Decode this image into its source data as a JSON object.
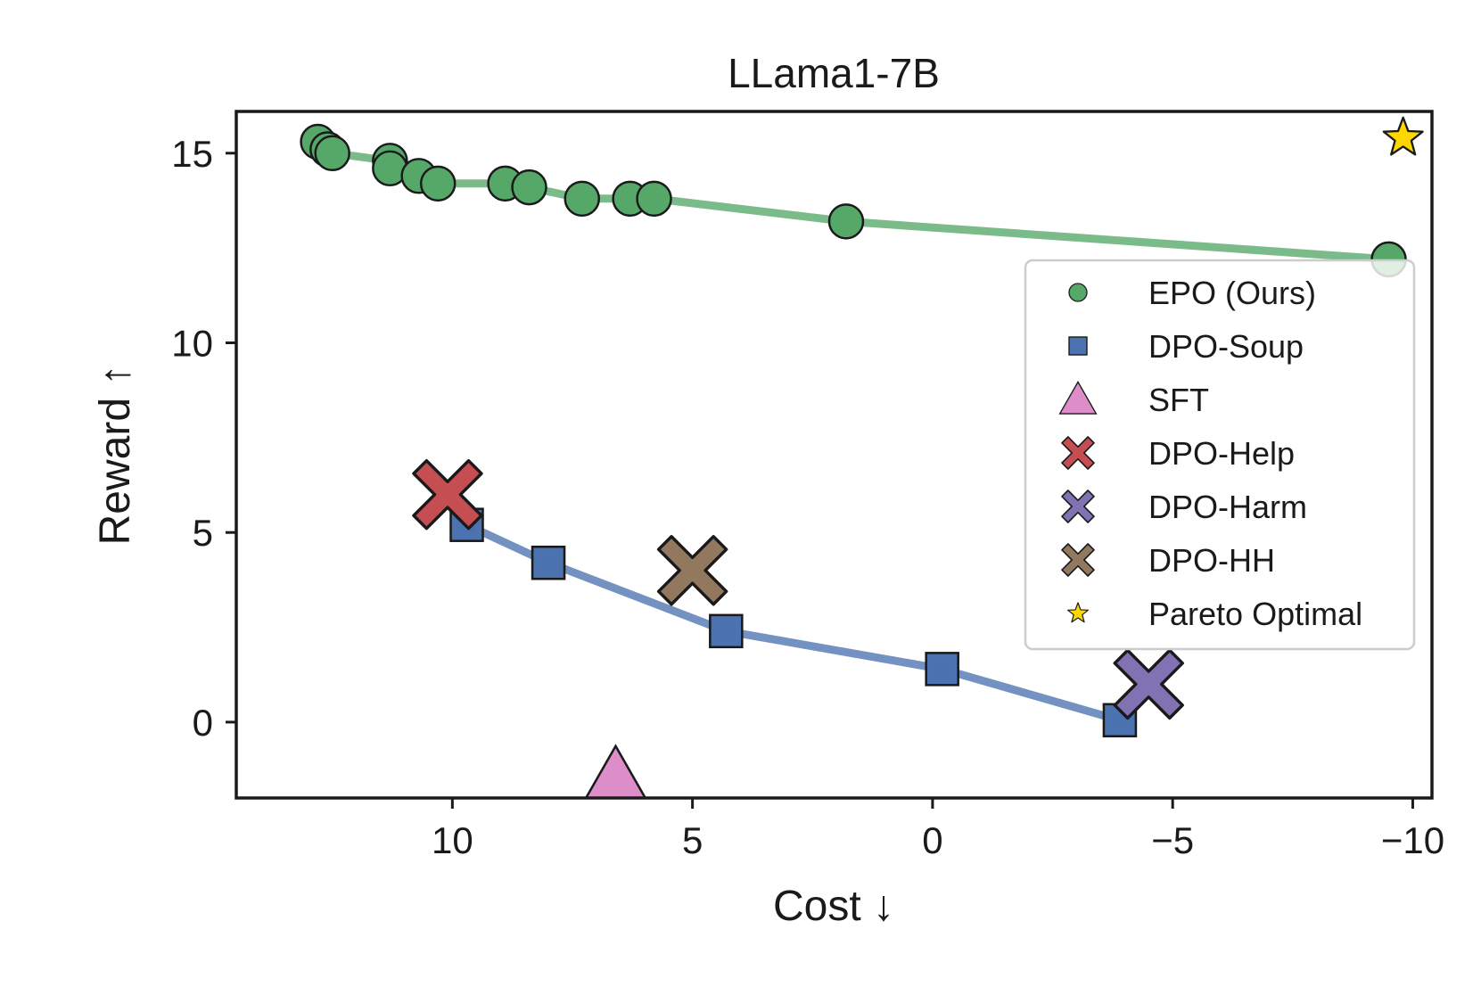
{
  "chart_data": {
    "type": "scatter",
    "title": "LLama1-7B",
    "xlabel": "Cost ↓",
    "ylabel": "Reward ↑",
    "xlim": [
      14.5,
      -10.4
    ],
    "ylim": [
      -2,
      16.1
    ],
    "x_inverted": true,
    "xticks": [
      10,
      5,
      0,
      -5,
      -10
    ],
    "xtick_labels": [
      "10",
      "5",
      "0",
      "−5",
      "−10"
    ],
    "yticks": [
      0,
      5,
      10,
      15
    ],
    "ytick_labels": [
      "0",
      "5",
      "10",
      "15"
    ],
    "grid": false,
    "legend_position": "center-right",
    "series": [
      {
        "name": "EPO (Ours)",
        "marker": "circle",
        "color": "#55a868",
        "line": true,
        "points": [
          {
            "x": 12.8,
            "y": 15.3
          },
          {
            "x": 12.6,
            "y": 15.1
          },
          {
            "x": 12.5,
            "y": 15.0
          },
          {
            "x": 11.3,
            "y": 14.8
          },
          {
            "x": 11.3,
            "y": 14.6
          },
          {
            "x": 10.7,
            "y": 14.4
          },
          {
            "x": 10.3,
            "y": 14.2
          },
          {
            "x": 8.9,
            "y": 14.2
          },
          {
            "x": 8.4,
            "y": 14.1
          },
          {
            "x": 7.3,
            "y": 13.8
          },
          {
            "x": 6.3,
            "y": 13.8
          },
          {
            "x": 5.8,
            "y": 13.8
          },
          {
            "x": 1.8,
            "y": 13.2
          },
          {
            "x": -9.5,
            "y": 12.2
          }
        ]
      },
      {
        "name": "DPO-Soup",
        "marker": "square",
        "color": "#4c72b0",
        "line": true,
        "points": [
          {
            "x": 9.7,
            "y": 5.2
          },
          {
            "x": 8.0,
            "y": 4.2
          },
          {
            "x": 4.3,
            "y": 2.4
          },
          {
            "x": -0.2,
            "y": 1.4
          },
          {
            "x": -3.9,
            "y": 0.05
          }
        ]
      },
      {
        "name": "SFT",
        "marker": "triangle",
        "color": "#dd8ec8",
        "line": false,
        "points": [
          {
            "x": 6.6,
            "y": -1.5
          }
        ]
      },
      {
        "name": "DPO-Help",
        "marker": "x",
        "color": "#c44e52",
        "line": false,
        "points": [
          {
            "x": 10.1,
            "y": 6.0
          }
        ]
      },
      {
        "name": "DPO-Harm",
        "marker": "x",
        "color": "#8172b3",
        "line": false,
        "points": [
          {
            "x": -4.5,
            "y": 1.0
          }
        ]
      },
      {
        "name": "DPO-HH",
        "marker": "x",
        "color": "#937860",
        "line": false,
        "points": [
          {
            "x": 5.0,
            "y": 4.0
          }
        ]
      },
      {
        "name": "Pareto Optimal",
        "marker": "star",
        "color": "#ffd700",
        "line": false,
        "points": [
          {
            "x": -9.8,
            "y": 15.4
          }
        ]
      }
    ]
  }
}
